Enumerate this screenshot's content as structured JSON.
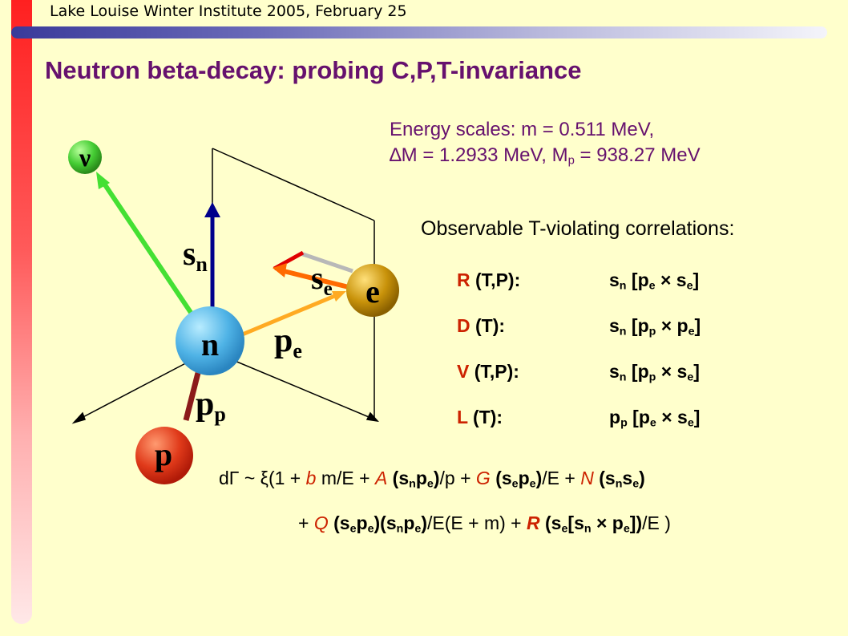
{
  "header": {
    "conference": "Lake Louise Winter Institute 2005, February 25",
    "title": "Neutron beta-decay: probing C,P,T-invariance"
  },
  "energy": {
    "line1": "Energy scales: m = 0.511 MeV,",
    "line2_delta": "∆M = 1.2933 MeV, M",
    "line2_sub": "p",
    "line2_rest": " = 938.27 MeV"
  },
  "observables": {
    "heading": "Observable T-violating correlations:",
    "rows": [
      {
        "letter": "R",
        "sym": " (T,P):"
      },
      {
        "letter": "D",
        "sym": " (T):"
      },
      {
        "letter": "V",
        "sym": " (T,P):"
      },
      {
        "letter": "L",
        "sym": " (T):"
      }
    ]
  },
  "diagram": {
    "neutron": "n",
    "proton": "p",
    "electron": "e",
    "neutrino": "ν",
    "sn_main": "s",
    "sn_sub": "n",
    "se_main": "s",
    "se_sub": "e",
    "pe_main": "p",
    "pe_sub": "e",
    "pp_main": "p",
    "pp_sub": "p"
  },
  "colors": {
    "neutron": "#4fb3e6",
    "proton": "#e03a1a",
    "electron": "#c8920a",
    "neutrino": "#44cc33",
    "title": "#66116e",
    "coefficient": "#cc2200"
  }
}
